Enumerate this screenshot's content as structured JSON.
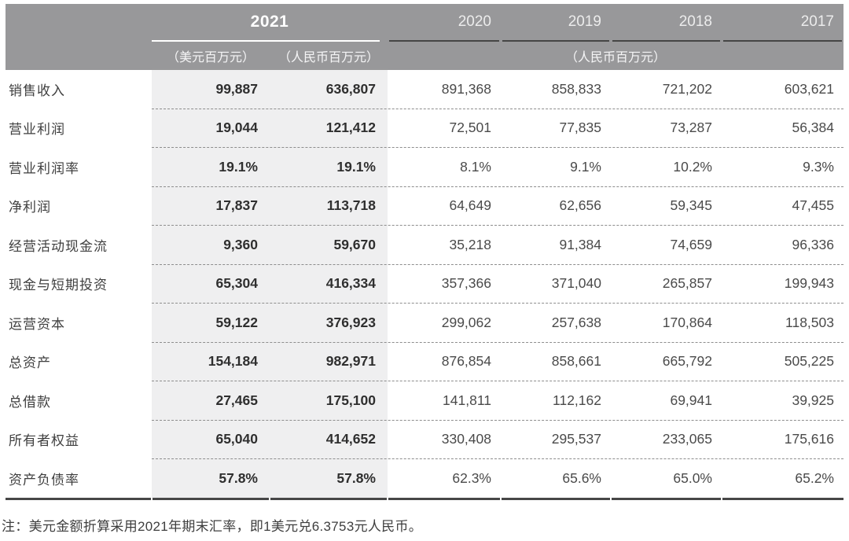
{
  "table": {
    "header": {
      "year_2021": "2021",
      "unit_usd_2021": "（美元百万元）",
      "unit_rmb_2021": "（人民币百万元）",
      "years": [
        "2020",
        "2019",
        "2018",
        "2017"
      ],
      "unit_rmb_right": "（人民币百万元）"
    },
    "rows": [
      {
        "label": "销售收入",
        "usd": "99,887",
        "rmb": "636,807",
        "y2020": "891,368",
        "y2019": "858,833",
        "y2018": "721,202",
        "y2017": "603,621"
      },
      {
        "label": "营业利润",
        "usd": "19,044",
        "rmb": "121,412",
        "y2020": "72,501",
        "y2019": "77,835",
        "y2018": "73,287",
        "y2017": "56,384"
      },
      {
        "label": "营业利润率",
        "usd": "19.1%",
        "rmb": "19.1%",
        "y2020": "8.1%",
        "y2019": "9.1%",
        "y2018": "10.2%",
        "y2017": "9.3%"
      },
      {
        "label": "净利润",
        "usd": "17,837",
        "rmb": "113,718",
        "y2020": "64,649",
        "y2019": "62,656",
        "y2018": "59,345",
        "y2017": "47,455"
      },
      {
        "label": "经营活动现金流",
        "usd": "9,360",
        "rmb": "59,670",
        "y2020": "35,218",
        "y2019": "91,384",
        "y2018": "74,659",
        "y2017": "96,336"
      },
      {
        "label": "现金与短期投资",
        "usd": "65,304",
        "rmb": "416,334",
        "y2020": "357,366",
        "y2019": "371,040",
        "y2018": "265,857",
        "y2017": "199,943"
      },
      {
        "label": "运营资本",
        "usd": "59,122",
        "rmb": "376,923",
        "y2020": "299,062",
        "y2019": "257,638",
        "y2018": "170,864",
        "y2017": "118,503"
      },
      {
        "label": "总资产",
        "usd": "154,184",
        "rmb": "982,971",
        "y2020": "876,854",
        "y2019": "858,661",
        "y2018": "665,792",
        "y2017": "505,225"
      },
      {
        "label": "总借款",
        "usd": "27,465",
        "rmb": "175,100",
        "y2020": "141,811",
        "y2019": "112,162",
        "y2018": "69,941",
        "y2017": "39,925"
      },
      {
        "label": "所有者权益",
        "usd": "65,040",
        "rmb": "414,652",
        "y2020": "330,408",
        "y2019": "295,537",
        "y2018": "233,065",
        "y2017": "175,616"
      },
      {
        "label": "资产负债率",
        "usd": "57.8%",
        "rmb": "57.8%",
        "y2020": "62.3%",
        "y2019": "65.6%",
        "y2018": "65.0%",
        "y2017": "65.2%"
      }
    ],
    "footnote": "注：美元金额折算采用2021年期末汇率，即1美元兑6.3753元人民币。"
  },
  "colors": {
    "header_background": "#98989a",
    "header_text": "#ffffff",
    "highlight_column_background": "#efeff0",
    "underline_2021": "#ffffff",
    "underline_years": "#454545",
    "row_separator_dashed": "#8d8d8d",
    "table_bottom_border": "#474747",
    "body_text": "#3f3f3f",
    "highlight_number_text": "#2f2f2f"
  }
}
